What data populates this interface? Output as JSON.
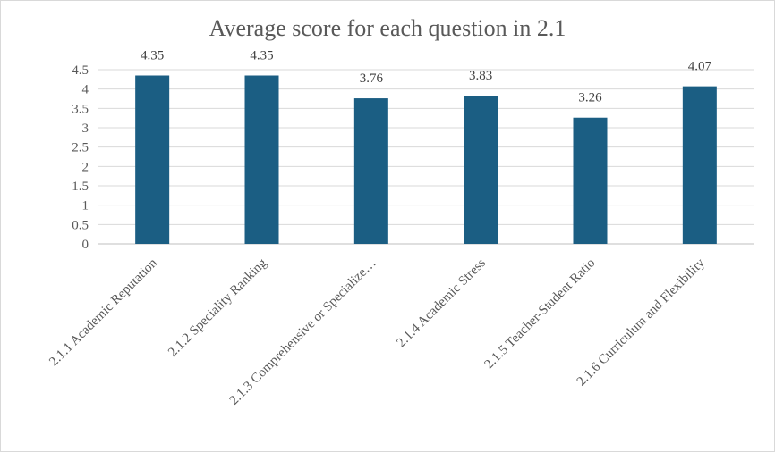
{
  "chart_data": {
    "type": "bar",
    "title": "Average score for each question in 2.1",
    "categories": [
      "2.1.1 Academic Reputation",
      "2.1.2 Speciality Ranking",
      "2.1.3 Comprehensive or Specialize…",
      "2.1.4 Academic Stress",
      "2.1.5 Teacher-Student Ratio",
      "2.1.6 Curriculum and Flexibility"
    ],
    "values": [
      4.35,
      4.35,
      3.76,
      3.83,
      3.26,
      4.07
    ],
    "data_labels": [
      "4.35",
      "4.35",
      "3.76",
      "3.83",
      "3.26",
      "4.07"
    ],
    "ylim": [
      0,
      4.5
    ],
    "yticks": [
      "0",
      "0.5",
      "1",
      "1.5",
      "2",
      "2.5",
      "3",
      "3.5",
      "4",
      "4.5"
    ],
    "grid": true,
    "bar_color": "#1b5e83",
    "xlabel": "",
    "ylabel": ""
  }
}
